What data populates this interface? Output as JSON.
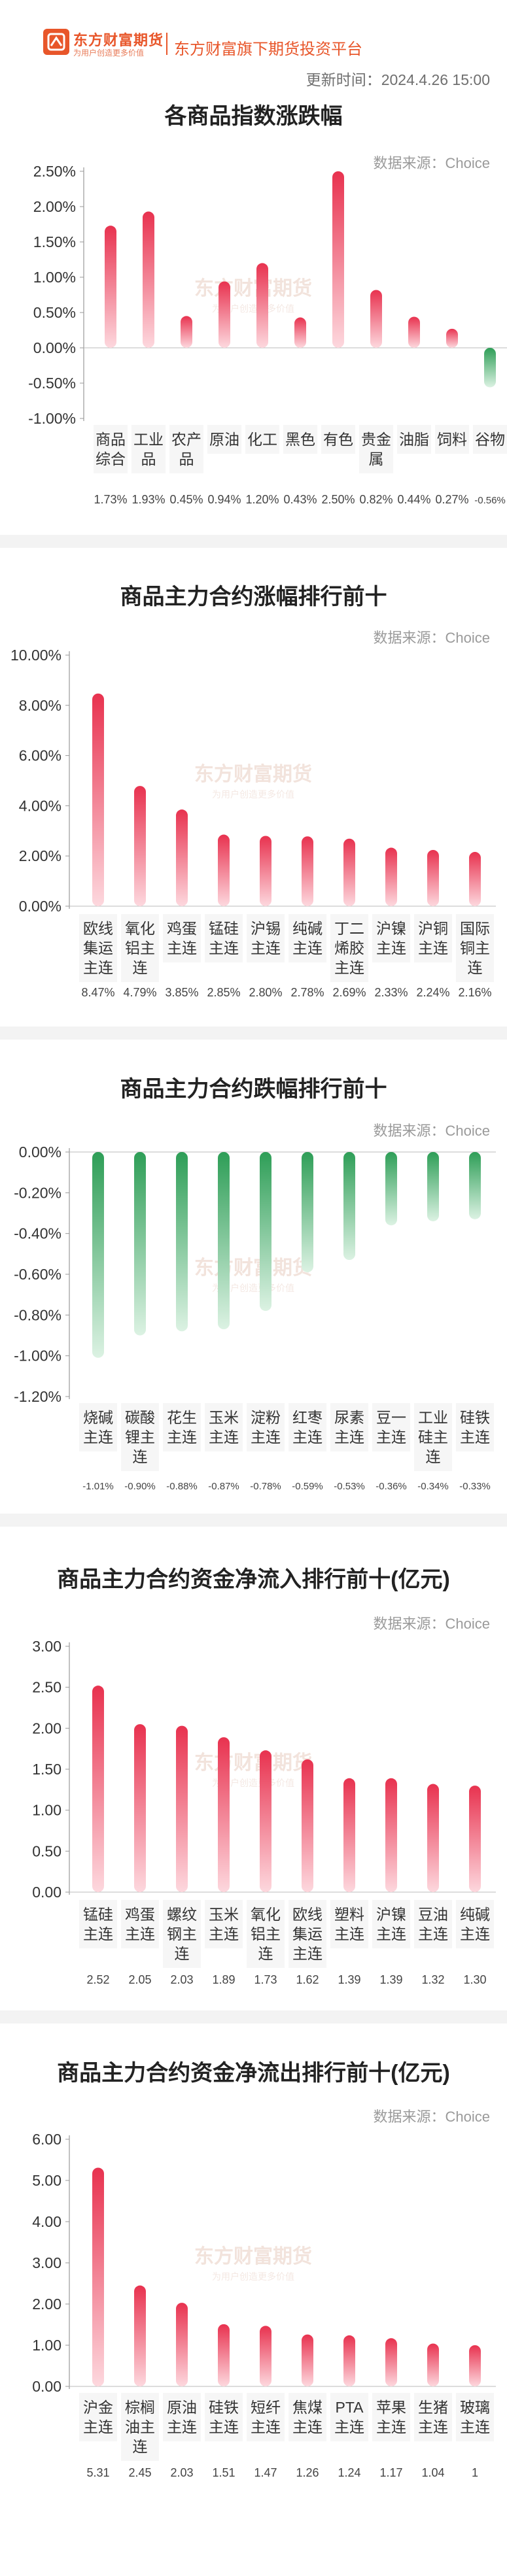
{
  "header": {
    "logo_icon": "东方财富期货-logo-icon",
    "brand_main": "东方财富期货",
    "brand_sub": "为用户创造更多价值",
    "platform": "东方财富旗下期货投资平台",
    "update_time": "更新时间：2024.4.26 15:00",
    "watermark_top": "东方财富期货",
    "watermark_bottom": "为用户创造更多价值"
  },
  "colors": {
    "brand": "#e8562a",
    "positive_top": "#e8324f",
    "positive_bottom": "#fdd8de",
    "negative_top": "#2e9e57",
    "negative_bottom": "#dcf2e3"
  },
  "chart_data": [
    {
      "type": "bar",
      "title": "各商品指数涨跌幅",
      "source": "数据来源：Choice",
      "categories": [
        [
          "商品",
          "综合"
        ],
        [
          "工业",
          "品"
        ],
        [
          "农产",
          "品"
        ],
        [
          "原油"
        ],
        [
          "化工"
        ],
        [
          "黑色"
        ],
        [
          "有色"
        ],
        [
          "贵金",
          "属"
        ],
        [
          "油脂"
        ],
        [
          "饲料"
        ],
        [
          "谷物"
        ]
      ],
      "values": [
        1.73,
        1.93,
        0.45,
        0.94,
        1.2,
        0.43,
        2.5,
        0.82,
        0.44,
        0.27,
        -0.56
      ],
      "value_labels": [
        "1.73%",
        "1.93%",
        "0.45%",
        "0.94%",
        "1.20%",
        "0.43%",
        "2.50%",
        "0.82%",
        "0.44%",
        "0.27%",
        "-0.56%"
      ],
      "ylim": [
        -1.0,
        2.5
      ],
      "yticks": [
        "2.50%",
        "2.00%",
        "1.50%",
        "1.00%",
        "0.50%",
        "0.00%",
        "-0.50%",
        "-1.00%"
      ],
      "ytick_values": [
        2.5,
        2.0,
        1.5,
        1.0,
        0.5,
        0.0,
        -0.5,
        -1.0
      ]
    },
    {
      "type": "bar",
      "title": "商品主力合约涨幅排行前十",
      "source": "数据来源：Choice",
      "categories": [
        [
          "欧线",
          "集运",
          "主连"
        ],
        [
          "氧化",
          "铝主",
          "连"
        ],
        [
          "鸡蛋",
          "主连"
        ],
        [
          "锰硅",
          "主连"
        ],
        [
          "沪锡",
          "主连"
        ],
        [
          "纯碱",
          "主连"
        ],
        [
          "丁二",
          "烯胶",
          "主连"
        ],
        [
          "沪镍",
          "主连"
        ],
        [
          "沪铜",
          "主连"
        ],
        [
          "国际",
          "铜主",
          "连"
        ]
      ],
      "values": [
        8.47,
        4.79,
        3.85,
        2.85,
        2.8,
        2.78,
        2.69,
        2.33,
        2.24,
        2.16
      ],
      "value_labels": [
        "8.47%",
        "4.79%",
        "3.85%",
        "2.85%",
        "2.80%",
        "2.78%",
        "2.69%",
        "2.33%",
        "2.24%",
        "2.16%"
      ],
      "ylim": [
        0,
        10
      ],
      "yticks": [
        "10.00%",
        "8.00%",
        "6.00%",
        "4.00%",
        "2.00%",
        "0.00%"
      ],
      "ytick_values": [
        10,
        8,
        6,
        4,
        2,
        0
      ]
    },
    {
      "type": "bar",
      "title": "商品主力合约跌幅排行前十",
      "source": "数据来源：Choice",
      "categories": [
        [
          "烧碱",
          "主连"
        ],
        [
          "碳酸",
          "锂主",
          "连"
        ],
        [
          "花生",
          "主连"
        ],
        [
          "玉米",
          "主连"
        ],
        [
          "淀粉",
          "主连"
        ],
        [
          "红枣",
          "主连"
        ],
        [
          "尿素",
          "主连"
        ],
        [
          "豆一",
          "主连"
        ],
        [
          "工业",
          "硅主",
          "连"
        ],
        [
          "硅铁",
          "主连"
        ]
      ],
      "values": [
        -1.01,
        -0.9,
        -0.88,
        -0.87,
        -0.78,
        -0.59,
        -0.53,
        -0.36,
        -0.34,
        -0.33
      ],
      "value_labels": [
        "-1.01%",
        "-0.90%",
        "-0.88%",
        "-0.87%",
        "-0.78%",
        "-0.59%",
        "-0.53%",
        "-0.36%",
        "-0.34%",
        "-0.33%"
      ],
      "ylim": [
        -1.2,
        0
      ],
      "yticks": [
        "0.00%",
        "-0.20%",
        "-0.40%",
        "-0.60%",
        "-0.80%",
        "-1.00%",
        "-1.20%"
      ],
      "ytick_values": [
        0,
        -0.2,
        -0.4,
        -0.6,
        -0.8,
        -1.0,
        -1.2
      ]
    },
    {
      "type": "bar",
      "title": "商品主力合约资金净流入排行前十(亿元)",
      "source": "数据来源：Choice",
      "categories": [
        [
          "锰硅",
          "主连"
        ],
        [
          "鸡蛋",
          "主连"
        ],
        [
          "螺纹",
          "钢主",
          "连"
        ],
        [
          "玉米",
          "主连"
        ],
        [
          "氧化",
          "铝主",
          "连"
        ],
        [
          "欧线",
          "集运",
          "主连"
        ],
        [
          "塑料",
          "主连"
        ],
        [
          "沪镍",
          "主连"
        ],
        [
          "豆油",
          "主连"
        ],
        [
          "纯碱",
          "主连"
        ]
      ],
      "values": [
        2.52,
        2.05,
        2.03,
        1.89,
        1.73,
        1.62,
        1.39,
        1.39,
        1.32,
        1.3
      ],
      "value_labels": [
        "2.52",
        "2.05",
        "2.03",
        "1.89",
        "1.73",
        "1.62",
        "1.39",
        "1.39",
        "1.32",
        "1.30"
      ],
      "ylim": [
        0,
        3
      ],
      "yticks": [
        "3.00",
        "2.50",
        "2.00",
        "1.50",
        "1.00",
        "0.50",
        "0.00"
      ],
      "ytick_values": [
        3.0,
        2.5,
        2.0,
        1.5,
        1.0,
        0.5,
        0.0
      ]
    },
    {
      "type": "bar",
      "title": "商品主力合约资金净流出排行前十(亿元)",
      "source": "数据来源：Choice",
      "categories": [
        [
          "沪金",
          "主连"
        ],
        [
          "棕榈",
          "油主",
          "连"
        ],
        [
          "原油",
          "主连"
        ],
        [
          "硅铁",
          "主连"
        ],
        [
          "短纤",
          "主连"
        ],
        [
          "焦煤",
          "主连"
        ],
        [
          "PTA",
          "主连"
        ],
        [
          "苹果",
          "主连"
        ],
        [
          "生猪",
          "主连"
        ],
        [
          "玻璃",
          "主连"
        ]
      ],
      "values": [
        5.31,
        2.45,
        2.03,
        1.51,
        1.47,
        1.26,
        1.24,
        1.17,
        1.04,
        1
      ],
      "value_labels": [
        "5.31",
        "2.45",
        "2.03",
        "1.51",
        "1.47",
        "1.26",
        "1.24",
        "1.17",
        "1.04",
        "1"
      ],
      "ylim": [
        0,
        6
      ],
      "yticks": [
        "6.00",
        "5.00",
        "4.00",
        "3.00",
        "2.00",
        "1.00",
        "0.00"
      ],
      "ytick_values": [
        6,
        5,
        4,
        3,
        2,
        1,
        0
      ]
    }
  ]
}
